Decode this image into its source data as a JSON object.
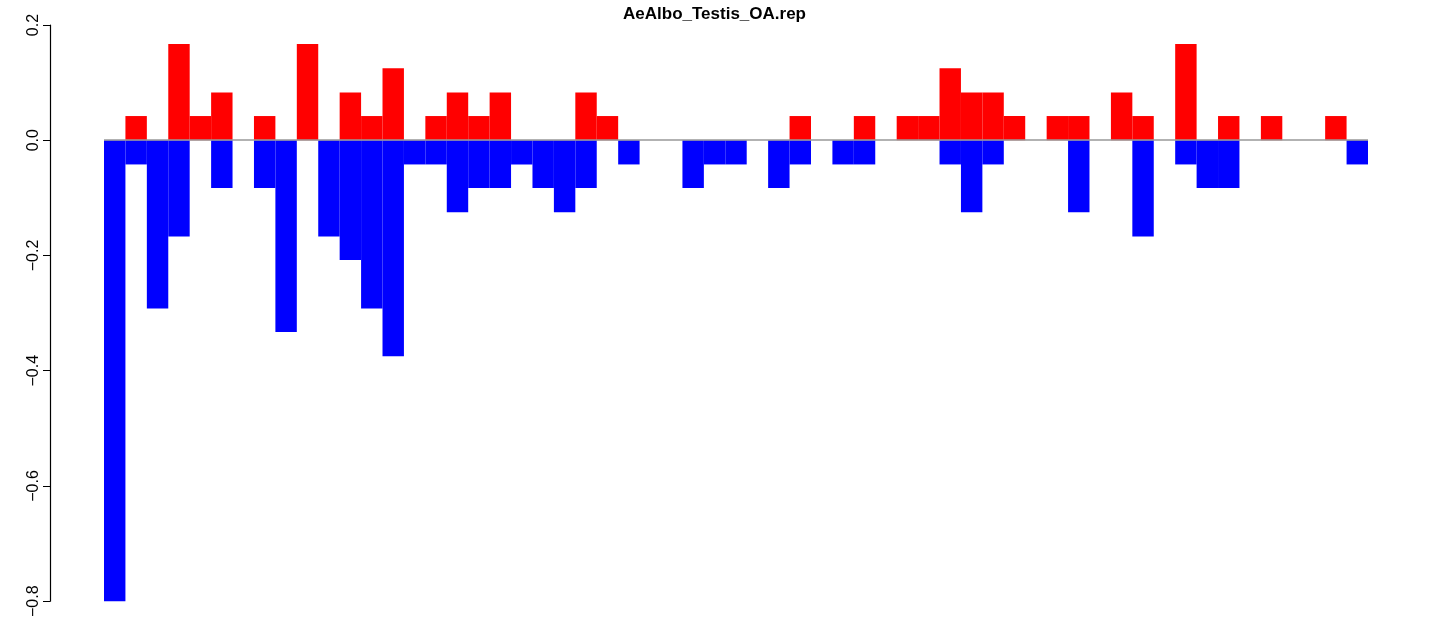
{
  "chart_data": {
    "type": "bar",
    "title": "AeAlbo_Testis_OA.rep",
    "categories": [
      null,
      null,
      null,
      null,
      null,
      null,
      null,
      null,
      null,
      null,
      null,
      null,
      null,
      null,
      null,
      null,
      null,
      null,
      null,
      null,
      null,
      null,
      null,
      null,
      null,
      null,
      null,
      null,
      null,
      null,
      null,
      null,
      null,
      null,
      null,
      null,
      null,
      null,
      null,
      null,
      null,
      null,
      null,
      null,
      null,
      null,
      null,
      null,
      null,
      null,
      null,
      null,
      null,
      null,
      null,
      null,
      null,
      null,
      null
    ],
    "series": [
      {
        "color": "#ff0000",
        "values": [
          0,
          0.042,
          0,
          0.167,
          0.042,
          0.083,
          0,
          0.042,
          0,
          0.167,
          0,
          0.083,
          0.042,
          0.125,
          0,
          0.042,
          0.083,
          0.042,
          0.083,
          0,
          0,
          0,
          0.083,
          0.042,
          0,
          0,
          0,
          0,
          0,
          0,
          0,
          0,
          0.042,
          0,
          0,
          0.042,
          0,
          0.042,
          0.042,
          0.125,
          0.083,
          0.083,
          0.042,
          0,
          0.042,
          0.042,
          0,
          0.083,
          0.042,
          0,
          0.167,
          0,
          0.042,
          0,
          0.042,
          0,
          0,
          0.042,
          0
        ]
      },
      {
        "color": "#0000ff",
        "values": [
          -0.8,
          -0.042,
          -0.292,
          -0.167,
          0,
          -0.083,
          0,
          -0.083,
          -0.333,
          0,
          -0.167,
          -0.208,
          -0.292,
          -0.375,
          -0.042,
          -0.042,
          -0.125,
          -0.083,
          -0.083,
          -0.042,
          -0.083,
          -0.125,
          -0.083,
          0,
          -0.042,
          0,
          0,
          -0.083,
          -0.042,
          -0.042,
          0,
          -0.083,
          -0.042,
          0,
          -0.042,
          -0.042,
          0,
          0,
          0,
          -0.042,
          -0.125,
          -0.042,
          0,
          0,
          0,
          -0.125,
          0,
          0,
          -0.167,
          0,
          -0.042,
          -0.083,
          -0.083,
          0,
          0,
          0,
          0,
          0,
          -0.042
        ]
      }
    ],
    "ylim": [
      -0.8,
      0.2
    ],
    "yticks": [
      {
        "value": -0.8,
        "label": "−0.8"
      },
      {
        "value": -0.6,
        "label": "−0.6"
      },
      {
        "value": -0.4,
        "label": "−0.4"
      },
      {
        "value": -0.2,
        "label": "−0.2"
      },
      {
        "value": 0,
        "label": "0.0"
      },
      0.2
    ],
    "ref_lines": [
      {
        "axis": "y",
        "value": 0,
        "color": "#999999"
      }
    ],
    "tick_labels": "y"
  }
}
